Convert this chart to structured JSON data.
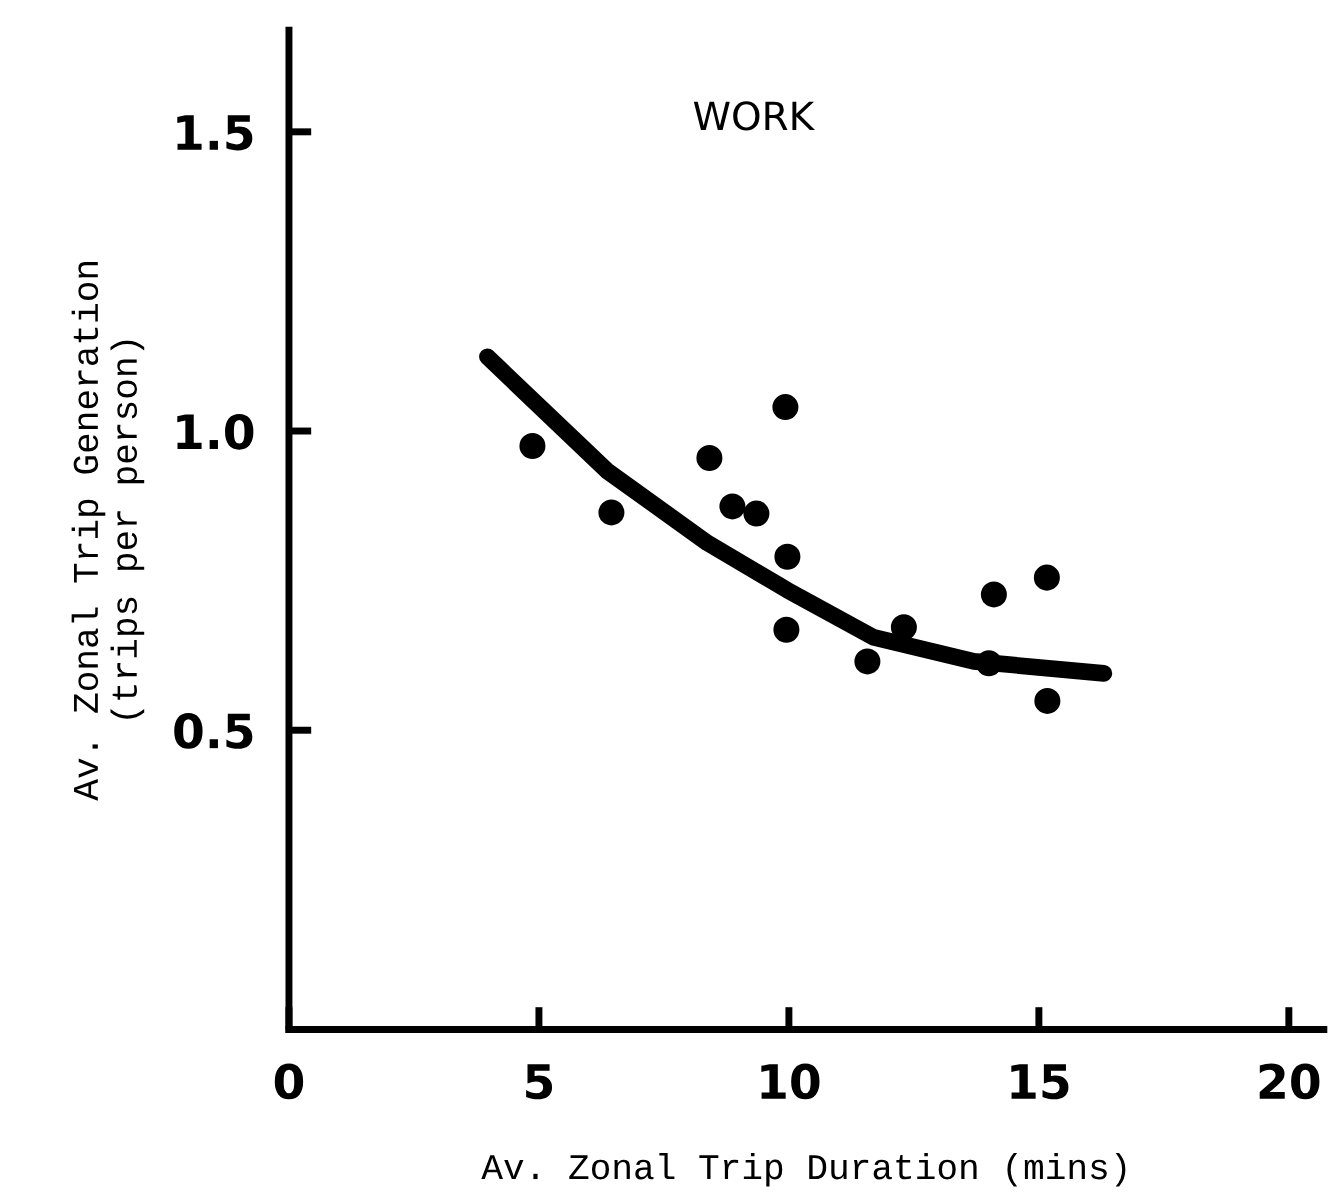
{
  "chart_data": {
    "type": "scatter",
    "xlabel": "Av. Zonal Trip Duration (mins)",
    "ylabel": "Av. Zonal Trip Generation\n(trips per person)",
    "annotations": [
      "WORK"
    ],
    "series": [
      {
        "color": "#000000",
        "marker": "circle",
        "x": [
          4.87,
          6.45,
          8.41,
          8.87,
          9.35,
          9.93,
          9.97,
          9.95,
          11.57,
          12.3,
          14.0,
          14.1,
          15.16,
          15.17
        ],
        "values": [
          0.975,
          0.864,
          0.955,
          0.874,
          0.862,
          1.04,
          0.79,
          0.668,
          0.615,
          0.672,
          0.612,
          0.727,
          0.755,
          0.549
        ]
      },
      {
        "type": "line",
        "color": "#000000",
        "marker": "none",
        "line_style": "solid",
        "x": [
          3.97,
          6.37,
          8.37,
          9.97,
          11.7,
          13.7,
          16.3
        ],
        "values": [
          1.124,
          0.933,
          0.813,
          0.734,
          0.655,
          0.615,
          0.595
        ]
      }
    ],
    "xlim": [
      0,
      20.7
    ],
    "ylim": [
      0,
      1.67
    ],
    "xticks": [
      0,
      5,
      10,
      15,
      20
    ],
    "yticks": [
      {
        "value": 0.5,
        "label": "0.5"
      },
      {
        "value": 1.0,
        "label": "1.0"
      },
      {
        "value": 1.5,
        "label": "1.5"
      }
    ],
    "grid": false,
    "legend": false
  }
}
